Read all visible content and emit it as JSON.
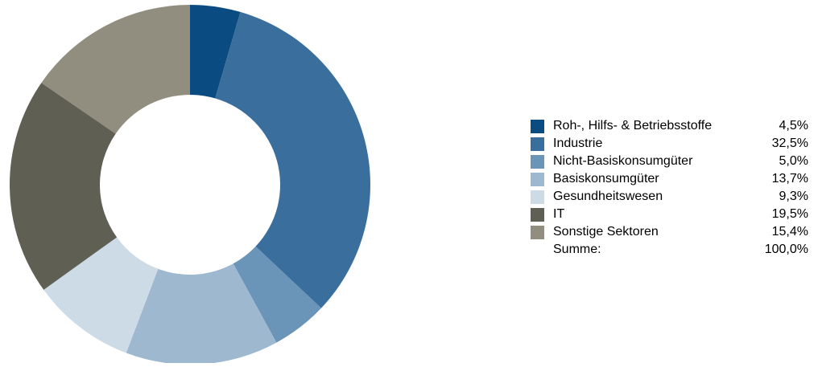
{
  "chart_data": {
    "type": "pie",
    "variant": "donut",
    "title": "",
    "categories": [
      "Roh-, Hilfs- & Betriebsstoffe",
      "Industrie",
      "Nicht-Basiskonsumgüter",
      "Basiskonsumgüter",
      "Gesundheitswesen",
      "IT",
      "Sonstige Sektoren"
    ],
    "values": [
      4.5,
      32.5,
      5.0,
      13.7,
      9.3,
      19.5,
      15.4
    ],
    "value_labels": [
      "4,5%",
      "32,5%",
      "5,0%",
      "13,7%",
      "9,3%",
      "19,5%",
      "15,4%"
    ],
    "colors": [
      "#0a4b82",
      "#3a6f9d",
      "#6a94b8",
      "#9db8cf",
      "#cddbe7",
      "#5f5f54",
      "#928e7f"
    ],
    "legend_position": "right",
    "total_label": "Summe:",
    "total_value": "100,0%"
  }
}
